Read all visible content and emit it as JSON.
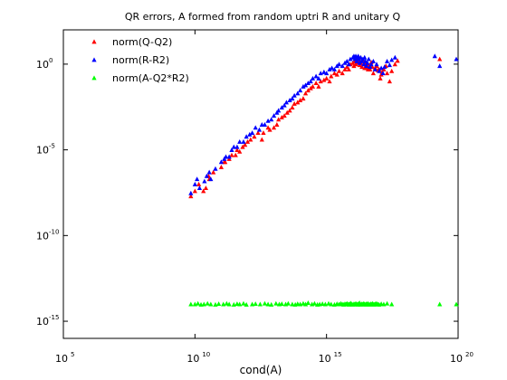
{
  "chart_data": {
    "type": "scatter",
    "title": "QR errors, A formed from random uptri R and unitary Q",
    "xlabel": "cond(A)",
    "ylabel": "",
    "x_scale": "log",
    "y_scale": "log",
    "xlim": [
      100000.0,
      1e+20
    ],
    "ylim": [
      1e-16,
      100.0
    ],
    "x_ticks": [
      {
        "base": "10",
        "exp": "5",
        "value": 100000.0
      },
      {
        "base": "10",
        "exp": "10",
        "value": 10000000000.0
      },
      {
        "base": "10",
        "exp": "15",
        "value": 1000000000000000.0
      },
      {
        "base": "10",
        "exp": "20",
        "value": 1e+20
      }
    ],
    "y_ticks": [
      {
        "base": "10",
        "exp": "0",
        "value": 1
      },
      {
        "base": "10",
        "exp": "-5",
        "value": 1e-05
      },
      {
        "base": "10",
        "exp": "-10",
        "value": 1e-10
      },
      {
        "base": "10",
        "exp": "-15",
        "value": 1e-15
      }
    ],
    "grid": false,
    "legend_position": "top-left",
    "series": [
      {
        "name": "norm(Q-Q2)",
        "color": "#ff0000",
        "marker": "triangle",
        "x": [
          7000000000.0,
          10000000000.0,
          14000000000.0,
          21000000000.0,
          26000000000.0,
          33000000000.0,
          35000000000.0,
          50000000000.0,
          100000000000.0,
          130000000000.0,
          140000000000.0,
          200000000000.0,
          250000000000.0,
          350000000000.0,
          400000000000.0,
          500000000000.0,
          650000000000.0,
          800000000000.0,
          1000000000000.0,
          1300000000000.0,
          1800000000000.0,
          2500000000000.0,
          3500000000000.0,
          4000000000000.0,
          6000000000000.0,
          7000000000000.0,
          10000000000000.0,
          13000000000000.0,
          15000000000000.0,
          20000000000000.0,
          25000000000000.0,
          32000000000000.0,
          40000000000000.0,
          50000000000000.0,
          60000000000000.0,
          80000000000000.0,
          100000000000000.0,
          130000000000000.0,
          160000000000000.0,
          200000000000000.0,
          250000000000000.0,
          300000000000000.0,
          400000000000000.0,
          500000000000000.0,
          600000000000000.0,
          800000000000000.0,
          1000000000000000.0,
          1300000000000000.0,
          1500000000000000.0,
          2000000000000000.0,
          2500000000000000.0,
          3000000000000000.0,
          4000000000000000.0,
          5000000000000000.0,
          6000000000000000.0,
          7000000000000000.0,
          8000000000000000.0,
          1e+16,
          1.1e+16,
          1.2e+16,
          1.3e+16,
          1.4e+16,
          1.5e+16,
          1.6e+16,
          1.7e+16,
          1.8e+16,
          1.9e+16,
          2e+16,
          2.2e+16,
          2.4e+16,
          2.6e+16,
          2.8e+16,
          3e+16,
          3.2e+16,
          3.5e+16,
          3.8e+16,
          4e+16,
          4.5e+16,
          5e+16,
          5.5e+16,
          6e+16,
          7e+16,
          8e+16,
          9e+16,
          1e+17,
          1.1e+17,
          1.2e+17,
          1.3e+17,
          1.5e+17,
          1.8e+17,
          2e+17,
          2.5e+17,
          3e+17,
          4e+17,
          5e+17,
          2e+19
        ],
        "y": [
          2e-08,
          4e-08,
          1e-07,
          4e-08,
          6e-08,
          3e-07,
          2e-07,
          5e-07,
          1e-06,
          2e-06,
          2e-06,
          3e-06,
          5e-06,
          5e-06,
          1e-05,
          8e-06,
          1.5e-05,
          2e-05,
          3e-05,
          4e-05,
          6e-05,
          0.0001,
          4e-05,
          0.0001,
          0.0002,
          0.00015,
          0.0002,
          0.0003,
          0.0006,
          0.0008,
          0.001,
          0.0015,
          0.002,
          0.003,
          0.005,
          0.006,
          0.008,
          0.01,
          0.02,
          0.03,
          0.04,
          0.05,
          0.08,
          0.05,
          0.1,
          0.12,
          0.15,
          0.1,
          0.2,
          0.3,
          0.25,
          0.4,
          0.3,
          0.5,
          0.7,
          0.5,
          1.0,
          1.2,
          0.8,
          1.5,
          1.0,
          2.0,
          1.7,
          1.3,
          2.5,
          0.9,
          1.5,
          1.2,
          0.7,
          1.8,
          1.0,
          0.6,
          1.1,
          0.6,
          1.0,
          0.5,
          0.8,
          0.5,
          1.3,
          0.7,
          0.3,
          0.6,
          0.8,
          0.45,
          0.5,
          0.15,
          0.25,
          0.35,
          0.5,
          0.8,
          0.3,
          0.1,
          0.4,
          1.0,
          1.6,
          2.0
        ],
        "y_count": 96
      },
      {
        "name": "norm(R-R2)",
        "color": "#0000ff",
        "marker": "triangle",
        "x": [
          7000000000.0,
          10000000000.0,
          12000000000.0,
          15000000000.0,
          23000000000.0,
          28000000000.0,
          35000000000.0,
          40000000000.0,
          60000000000.0,
          100000000000.0,
          130000000000.0,
          150000000000.0,
          200000000000.0,
          250000000000.0,
          300000000000.0,
          400000000000.0,
          500000000000.0,
          700000000000.0,
          900000000000.0,
          1200000000000.0,
          1500000000000.0,
          2000000000000.0,
          2800000000000.0,
          3500000000000.0,
          4500000000000.0,
          6000000000000.0,
          8000000000000.0,
          10000000000000.0,
          13000000000000.0,
          15000000000000.0,
          20000000000000.0,
          25000000000000.0,
          30000000000000.0,
          40000000000000.0,
          50000000000000.0,
          60000000000000.0,
          80000000000000.0,
          100000000000000.0,
          130000000000000.0,
          160000000000000.0,
          200000000000000.0,
          250000000000000.0,
          300000000000000.0,
          400000000000000.0,
          500000000000000.0,
          600000000000000.0,
          800000000000000.0,
          1000000000000000.0,
          1300000000000000.0,
          1600000000000000.0,
          2000000000000000.0,
          2500000000000000.0,
          3000000000000000.0,
          4000000000000000.0,
          5000000000000000.0,
          6000000000000000.0,
          7000000000000000.0,
          8000000000000000.0,
          1e+16,
          1.1e+16,
          1.2e+16,
          1.3e+16,
          1.4e+16,
          1.5e+16,
          1.6e+16,
          1.7e+16,
          1.8e+16,
          2e+16,
          2.2e+16,
          2.4e+16,
          2.6e+16,
          2.8e+16,
          3e+16,
          3.3e+16,
          3.6e+16,
          4e+16,
          4.5e+16,
          5e+16,
          6e+16,
          7e+16,
          8e+16,
          1e+17,
          1.2e+17,
          1.4e+17,
          1.6e+17,
          2e+17,
          2.5e+17,
          3e+17,
          4e+17,
          1.3e+19,
          2e+19,
          1e+20
        ],
        "y": [
          3e-08,
          1e-07,
          2e-07,
          6e-08,
          1.5e-07,
          3e-07,
          5e-07,
          2e-07,
          8e-07,
          2e-06,
          3e-06,
          4e-06,
          4e-06,
          1e-05,
          1.5e-05,
          1.5e-05,
          3e-05,
          3e-05,
          6e-05,
          8e-05,
          0.0001,
          0.0002,
          0.00015,
          0.0003,
          0.0003,
          0.0005,
          0.0006,
          0.001,
          0.0015,
          0.002,
          0.003,
          0.004,
          0.006,
          0.008,
          0.01,
          0.015,
          0.02,
          0.03,
          0.05,
          0.06,
          0.08,
          0.1,
          0.15,
          0.2,
          0.15,
          0.3,
          0.35,
          0.3,
          0.5,
          0.6,
          0.5,
          0.8,
          1.0,
          0.8,
          1.2,
          1.5,
          1.0,
          2.0,
          2.5,
          3.0,
          2.0,
          3.0,
          1.5,
          2.5,
          3.0,
          2.0,
          1.2,
          2.5,
          1.5,
          2.0,
          1.0,
          2.5,
          1.5,
          0.8,
          1.2,
          2.0,
          0.7,
          1.0,
          1.5,
          0.5,
          1.0,
          0.4,
          0.6,
          0.3,
          0.7,
          1.5,
          0.9,
          1.8,
          2.5,
          3.0,
          0.8,
          2.0
        ]
      },
      {
        "name": "norm(A-Q2*R2)",
        "color": "#00ff00",
        "marker": "triangle",
        "x": [
          7000000000.0,
          10000000000.0,
          13000000000.0,
          17000000000.0,
          22000000000.0,
          30000000000.0,
          40000000000.0,
          60000000000.0,
          80000000000.0,
          120000000000.0,
          160000000000.0,
          200000000000.0,
          300000000000.0,
          400000000000.0,
          500000000000.0,
          700000000000.0,
          900000000000.0,
          1500000000000.0,
          2000000000000.0,
          3000000000000.0,
          4500000000000.0,
          6000000000000.0,
          8000000000000.0,
          12000000000000.0,
          16000000000000.0,
          20000000000000.0,
          28000000000000.0,
          35000000000000.0,
          50000000000000.0,
          65000000000000.0,
          80000000000000.0,
          100000000000000.0,
          130000000000000.0,
          160000000000000.0,
          200000000000000.0,
          280000000000000.0,
          350000000000000.0,
          450000000000000.0,
          550000000000000.0,
          700000000000000.0,
          900000000000000.0,
          1200000000000000.0,
          1500000000000000.0,
          2000000000000000.0,
          2500000000000000.0,
          3000000000000000.0,
          3500000000000000.0,
          4000000000000000.0,
          4500000000000000.0,
          5000000000000000.0,
          5500000000000000.0,
          6000000000000000.0,
          6500000000000000.0,
          7000000000000000.0,
          7500000000000000.0,
          8000000000000000.0,
          8500000000000000.0,
          9000000000000000.0,
          1e+16,
          1.1e+16,
          1.2e+16,
          1.3e+16,
          1.4e+16,
          1.5e+16,
          1.6e+16,
          1.7e+16,
          1.8e+16,
          1.9e+16,
          2e+16,
          2.2e+16,
          2.4e+16,
          2.6e+16,
          2.8e+16,
          3e+16,
          3.2e+16,
          3.4e+16,
          3.7e+16,
          4e+16,
          4.4e+16,
          4.8e+16,
          5.2e+16,
          5.6e+16,
          6e+16,
          6.5e+16,
          7e+16,
          7.5e+16,
          8e+16,
          9e+16,
          1e+17,
          1.2e+17,
          1.5e+17,
          2e+17,
          3e+17,
          2e+19,
          1e+20
        ],
        "y": [
          1e-14,
          1e-14,
          1.1e-14,
          9.5e-15,
          1e-14,
          1.1e-14,
          1e-14,
          9.5e-15,
          1.05e-14,
          1e-14,
          1.1e-14,
          1e-14,
          9.5e-15,
          1.05e-14,
          1e-14,
          1.1e-14,
          9.5e-15,
          1e-14,
          1.05e-14,
          1e-14,
          1.1e-14,
          1e-14,
          9.5e-15,
          1.1e-14,
          1e-14,
          1.05e-14,
          1e-14,
          1.1e-14,
          1e-14,
          9.5e-15,
          1.05e-14,
          1e-14,
          1.1e-14,
          1e-14,
          1.2e-14,
          1e-14,
          1.1e-14,
          9.5e-15,
          1e-14,
          1.05e-14,
          1e-14,
          1.1e-14,
          1e-14,
          9.5e-15,
          1.05e-14,
          1e-14,
          1.1e-14,
          1e-14,
          9.5e-15,
          1.05e-14,
          1e-14,
          1.1e-14,
          1e-14,
          9.5e-15,
          1.05e-14,
          1e-14,
          1.15e-14,
          1e-14,
          9.5e-15,
          1.05e-14,
          1e-14,
          1.1e-14,
          1e-14,
          9.5e-15,
          1.05e-14,
          1e-14,
          1.2e-14,
          1e-14,
          9.5e-15,
          1.05e-14,
          1e-14,
          1.1e-14,
          1e-14,
          9.5e-15,
          1.05e-14,
          1e-14,
          1.1e-14,
          1e-14,
          9.5e-15,
          1.05e-14,
          1e-14,
          1.1e-14,
          1e-14,
          9.5e-15,
          1.05e-14,
          1e-14,
          1.1e-14,
          1e-14,
          9.5e-15,
          1.05e-14,
          1e-14,
          1.1e-14,
          1e-14,
          1e-14,
          1e-14
        ]
      }
    ]
  }
}
